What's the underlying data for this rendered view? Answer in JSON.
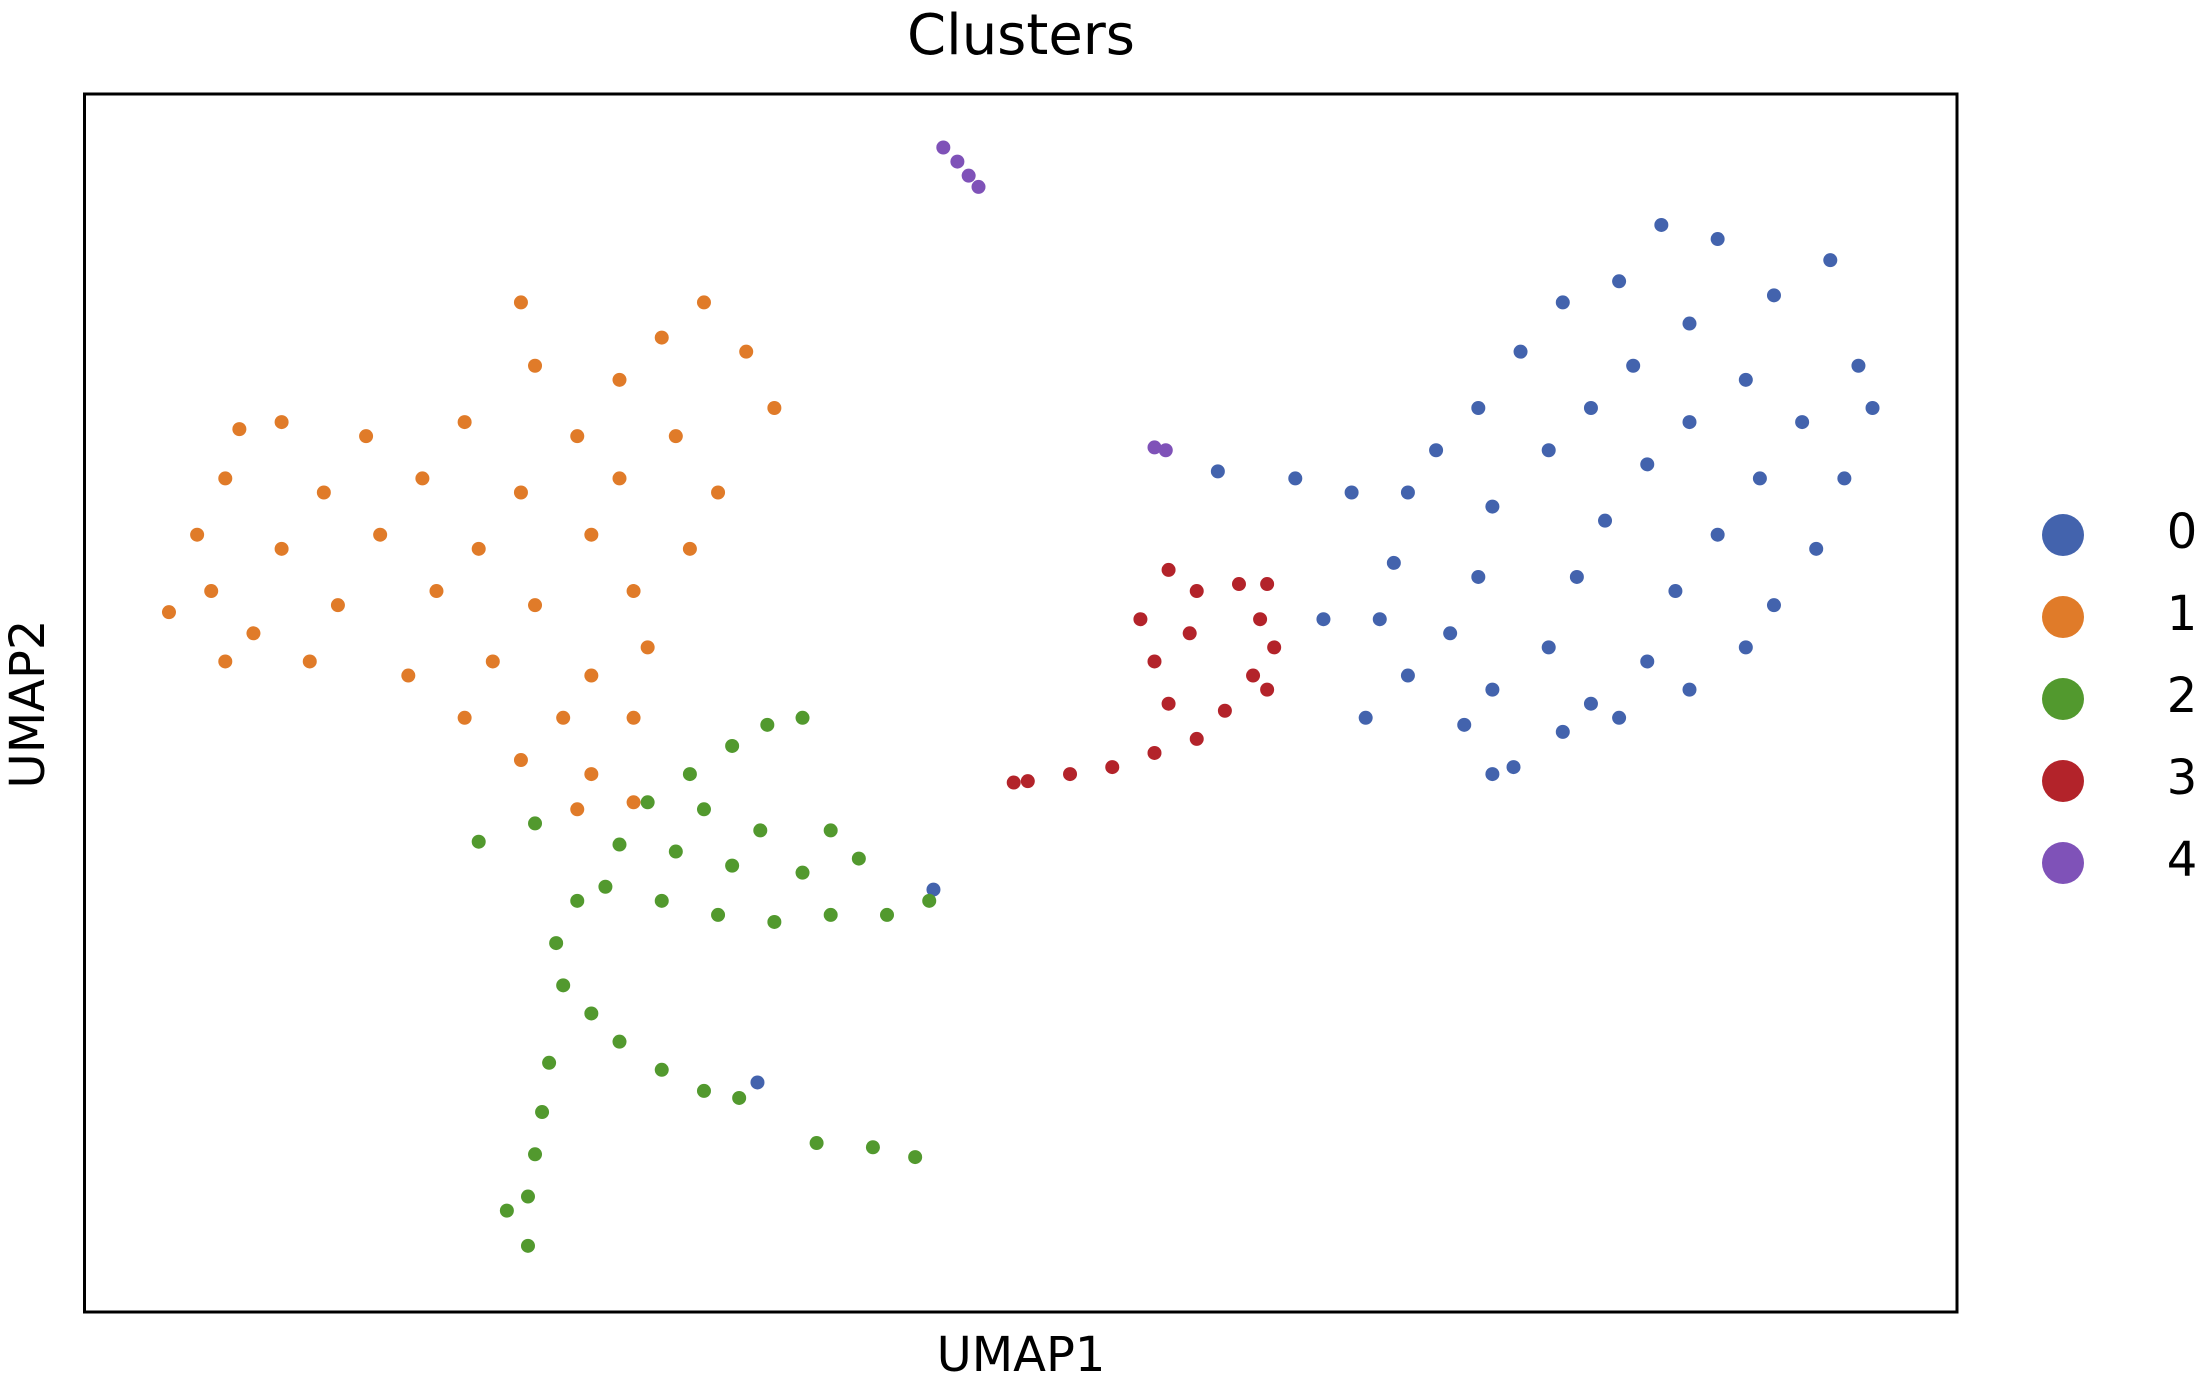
{
  "chart_data": {
    "type": "scatter",
    "title": "Clusters",
    "x_label": "UMAP1",
    "y_label": "UMAP2",
    "xlim": [
      0,
      133
    ],
    "ylim": [
      0,
      86.5
    ],
    "grid": false,
    "legend": "right",
    "series": [
      {
        "name": "0",
        "color": "#4363ad",
        "x": [
          112,
          116,
          124,
          109,
          120,
          105,
          114,
          126,
          102,
          110,
          118,
          99,
          107,
          114,
          122,
          127,
          96,
          104,
          111,
          119,
          125,
          86,
          90,
          94,
          100,
          108,
          116,
          123,
          93,
          99,
          106,
          113,
          120,
          92,
          97,
          104,
          111,
          118,
          94,
          100,
          107,
          114,
          91,
          98,
          105,
          109,
          100,
          101.5,
          88,
          80.5,
          60.3,
          47.8
        ],
        "values": [
          77.2,
          76.2,
          74.7,
          73.2,
          72.2,
          71.7,
          70.2,
          67.2,
          68.2,
          67.2,
          66.2,
          64.2,
          64.2,
          63.2,
          63.2,
          64.2,
          61.2,
          61.2,
          60.2,
          59.2,
          59.2,
          59.2,
          58.2,
          58.2,
          57.2,
          56.2,
          55.2,
          54.2,
          53.2,
          52.2,
          52.2,
          51.2,
          50.2,
          49.2,
          48.2,
          47.2,
          46.2,
          47.2,
          45.2,
          44.2,
          43.2,
          44.2,
          42.2,
          41.7,
          41.2,
          42.2,
          38.2,
          38.7,
          49.2,
          59.7,
          30,
          16.3
        ]
      },
      {
        "name": "1",
        "color": "#e07b29",
        "x": [
          31,
          44,
          41,
          47,
          32,
          38,
          49,
          11,
          14,
          20,
          27,
          35,
          42,
          10,
          17,
          24,
          31,
          38,
          45,
          8,
          14,
          21,
          28,
          36,
          43,
          6,
          9,
          12,
          18,
          25,
          32,
          39,
          10,
          16,
          23,
          29,
          36,
          40,
          27,
          34,
          39,
          31,
          36,
          35,
          39
        ],
        "values": [
          71.7,
          71.7,
          69.2,
          68.2,
          67.2,
          66.2,
          64.2,
          62.7,
          63.2,
          62.2,
          63.2,
          62.2,
          62.2,
          59.2,
          58.2,
          59.2,
          58.2,
          59.2,
          58.2,
          55.2,
          54.2,
          55.2,
          54.2,
          55.2,
          54.2,
          49.7,
          51.2,
          48.2,
          50.2,
          51.2,
          50.2,
          51.2,
          46.2,
          46.2,
          45.2,
          46.2,
          45.2,
          47.2,
          42.2,
          42.2,
          42.2,
          39.2,
          38.2,
          35.7,
          36.2
        ]
      },
      {
        "name": "2",
        "color": "#52992e",
        "x": [
          48.5,
          51,
          46,
          43,
          40,
          44,
          48,
          53,
          38,
          42,
          46,
          51,
          55,
          37,
          41,
          45,
          49,
          53,
          57,
          60,
          28,
          32,
          35,
          33.5,
          34,
          36,
          38,
          41,
          44,
          46.5,
          33,
          32.5,
          32,
          31.5,
          30,
          31.5,
          52,
          56,
          59
        ],
        "values": [
          41.7,
          42.2,
          40.2,
          38.2,
          36.2,
          35.7,
          34.2,
          34.2,
          33.2,
          32.7,
          31.7,
          31.2,
          32.2,
          30.2,
          29.2,
          28.2,
          27.7,
          28.2,
          28.2,
          29.2,
          33.4,
          34.7,
          29.2,
          26.2,
          23.2,
          21.2,
          19.2,
          17.2,
          15.7,
          15.2,
          17.7,
          14.2,
          11.2,
          8.2,
          7.2,
          4.7,
          12,
          11.7,
          11
        ]
      },
      {
        "name": "3",
        "color": "#b3232a",
        "x": [
          77,
          79,
          82,
          84,
          75,
          78.5,
          83.5,
          84.5,
          76,
          83,
          77,
          81,
          84,
          79,
          76,
          73,
          70,
          67,
          66
        ],
        "values": [
          52.7,
          51.2,
          51.7,
          51.7,
          49.2,
          48.2,
          49.2,
          47.2,
          46.2,
          45.2,
          43.2,
          42.7,
          44.2,
          40.7,
          39.7,
          38.7,
          38.2,
          37.7,
          37.6
        ]
      },
      {
        "name": "4",
        "color": "#7f52b8",
        "x": [
          61,
          62,
          62.8,
          63.5,
          76,
          76.8
        ],
        "values": [
          82.7,
          81.7,
          80.7,
          79.9,
          61.4,
          61.2
        ]
      }
    ]
  }
}
